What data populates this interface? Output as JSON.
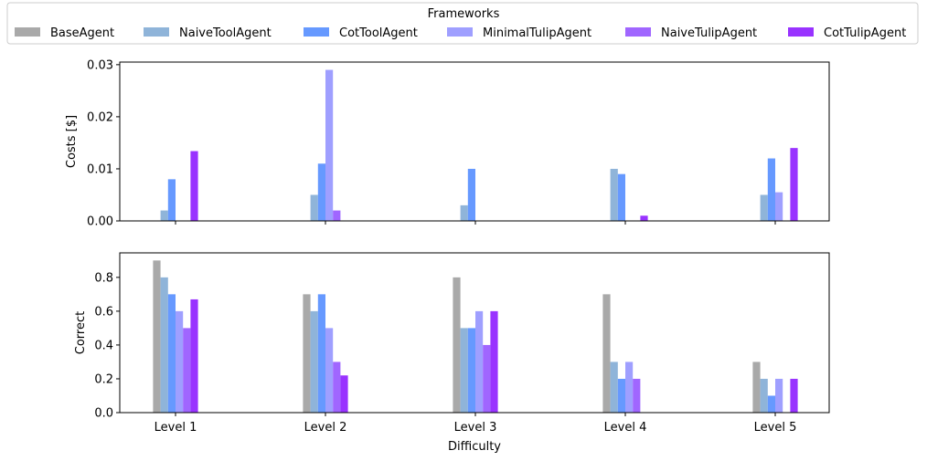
{
  "chart_data": {
    "type": "bar",
    "legend": {
      "title": "Frameworks",
      "placement": "top-center",
      "entries": [
        "BaseAgent",
        "NaiveToolAgent",
        "CotToolAgent",
        "MinimalTulipAgent",
        "NaiveTulipAgent",
        "CotTulipAgent"
      ]
    },
    "colors": [
      "#a9a9a9",
      "#8fb4d9",
      "#6699ff",
      "#9f9fff",
      "#a066ff",
      "#9933ff"
    ],
    "categories": [
      "Level 1",
      "Level 2",
      "Level 3",
      "Level 4",
      "Level 5"
    ],
    "xlabel": "Difficulty",
    "subplots": [
      {
        "ylabel": "Costs [$]",
        "ylim": [
          0,
          0.0305
        ],
        "yticks": [
          0.0,
          0.01,
          0.02,
          0.03
        ],
        "ytick_labels": [
          "0.00",
          "0.01",
          "0.02",
          "0.03"
        ],
        "series": [
          {
            "name": "BaseAgent",
            "values": [
              0,
              0,
              0,
              0,
              0
            ]
          },
          {
            "name": "NaiveToolAgent",
            "values": [
              0.002,
              0.005,
              0.003,
              0.01,
              0.005
            ]
          },
          {
            "name": "CotToolAgent",
            "values": [
              0.008,
              0.011,
              0.01,
              0.009,
              0.012
            ]
          },
          {
            "name": "MinimalTulipAgent",
            "values": [
              0,
              0.029,
              0,
              0,
              0.0055
            ]
          },
          {
            "name": "NaiveTulipAgent",
            "values": [
              0,
              0.002,
              0,
              0,
              0
            ]
          },
          {
            "name": "CotTulipAgent",
            "values": [
              0.0134,
              0,
              0,
              0.001,
              0.014
            ]
          }
        ]
      },
      {
        "ylabel": "Correct",
        "ylim": [
          0,
          0.945
        ],
        "yticks": [
          0.0,
          0.2,
          0.4,
          0.6,
          0.8
        ],
        "ytick_labels": [
          "0.0",
          "0.2",
          "0.4",
          "0.6",
          "0.8"
        ],
        "series": [
          {
            "name": "BaseAgent",
            "values": [
              0.9,
              0.7,
              0.8,
              0.7,
              0.3
            ]
          },
          {
            "name": "NaiveToolAgent",
            "values": [
              0.8,
              0.6,
              0.5,
              0.3,
              0.2
            ]
          },
          {
            "name": "CotToolAgent",
            "values": [
              0.7,
              0.7,
              0.5,
              0.2,
              0.1
            ]
          },
          {
            "name": "MinimalTulipAgent",
            "values": [
              0.6,
              0.5,
              0.6,
              0.3,
              0.2
            ]
          },
          {
            "name": "NaiveTulipAgent",
            "values": [
              0.5,
              0.3,
              0.4,
              0.2,
              0
            ]
          },
          {
            "name": "CotTulipAgent",
            "values": [
              0.67,
              0.22,
              0.6,
              0,
              0.2
            ]
          }
        ]
      }
    ]
  }
}
